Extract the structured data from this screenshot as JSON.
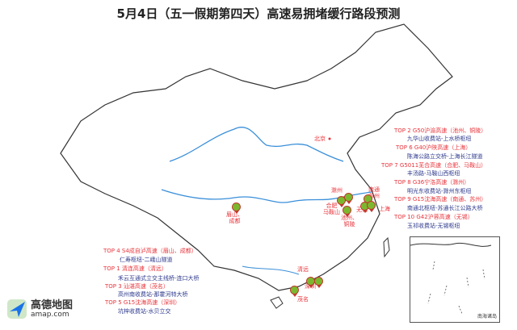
{
  "title": "5月4日（五一假期第四天）高速易拥堵缓行路段预测",
  "colors": {
    "route_title": "#e8343b",
    "route_segment": "#2e3a8c",
    "marker": "#7cb82f",
    "river": "#3a8fd9"
  },
  "right_list": [
    {
      "route": "TOP 2 G50沪渝高速（池州、铜陵）",
      "segment": "九华山收费站-上水桥枢纽"
    },
    {
      "route": "TOP 6 G40沪陕高速（上海）",
      "segment": "陈海公路立交桥-上海长江隧道"
    },
    {
      "route": "TOP 7 G5011芜合高速（合肥、马鞍山）",
      "segment": "丰汤路-马鞍山西枢纽"
    },
    {
      "route": "TOP 8 G36宁洛高速（滁州）",
      "segment": "明光东收费站-滁州东枢纽"
    },
    {
      "route": "TOP 9 G15沈海高速（南通、苏州）",
      "segment": "南通北枢纽-苏通长江公路大桥"
    },
    {
      "route": "TOP 10 G42沪蓉高速（无锡）",
      "segment": "玉祁收费站-无锡枢纽"
    }
  ],
  "left_list": [
    {
      "route": "TOP 4 S4成自泸高速（眉山、成都）",
      "segment": "仁寿枢纽-二峨山隧道"
    },
    {
      "route": "TOP 1 清连高速（清远）",
      "segment": "禾云互通式立交主线桥-连口大桥"
    },
    {
      "route": "TOP 3 汕湛高速（茂名）",
      "segment": "高州南收费站-那霍河特大桥"
    },
    {
      "route": "TOP 5 G15沈海高速（深圳）",
      "segment": "坑梓收费站-水贝立交"
    }
  ],
  "cities": {
    "beijing": "北京",
    "chuzhou": "滁州",
    "hefei": "合肥\n马鞍山",
    "chizhou": "池州、\n铜陵",
    "nantong": "南通\n苏州",
    "wuxi": "无锡",
    "shanghai": "上海",
    "chengdu": "眉山、\n成都",
    "qingyuan": "清远",
    "shenzhen": "深圳",
    "maoming": "茂名"
  },
  "logo": {
    "name": "高德地图",
    "url": "amap.com"
  },
  "inset": {
    "label": "南海诸岛"
  }
}
